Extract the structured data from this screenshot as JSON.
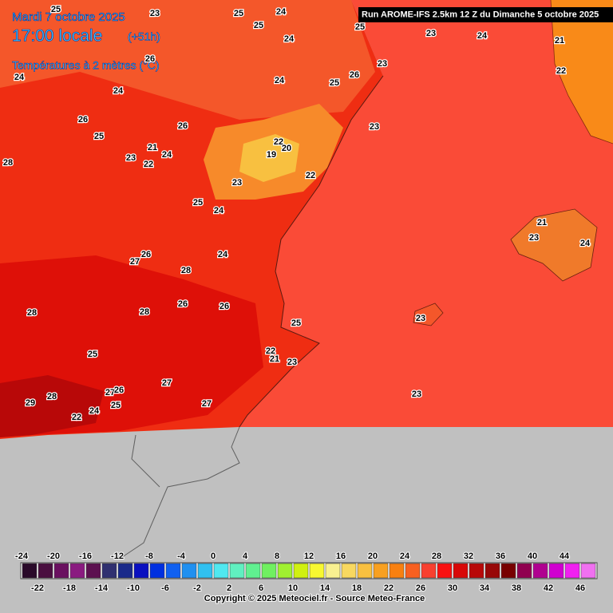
{
  "header": {
    "date": "Mardi 7 octobre 2025",
    "time": "17:00 locale",
    "offset": "(+51h)",
    "variable": "Températures à 2 mètres (°C)"
  },
  "run_info": "Run AROME-IFS 2.5km 12 Z du Dimanche 5 octobre 2025",
  "copyright": "Copyright © 2025 Meteociel.fr - Source Meteo-France",
  "temperature_labels": [
    25,
    23,
    25,
    24,
    25,
    24,
    25,
    23,
    24,
    21,
    22,
    23,
    26,
    24,
    24,
    24,
    25,
    26,
    23,
    26,
    26,
    25,
    21,
    24,
    23,
    22,
    28,
    22,
    19,
    20,
    22,
    23,
    25,
    24,
    21,
    23,
    24,
    24,
    26,
    27,
    28,
    28,
    28,
    26,
    26,
    25,
    23,
    22,
    21,
    23,
    25,
    27,
    28,
    29,
    27,
    26,
    25,
    23,
    27,
    24,
    22
  ],
  "colorbar": {
    "top_labels": [
      -24,
      -20,
      -16,
      -12,
      -8,
      -4,
      0,
      4,
      8,
      12,
      16,
      20,
      24,
      28,
      32,
      36,
      40,
      44
    ],
    "bottom_labels": [
      -22,
      -18,
      -14,
      -10,
      -6,
      -2,
      2,
      6,
      10,
      14,
      18,
      22,
      26,
      30,
      34,
      38,
      42,
      46
    ],
    "colors": [
      "#2a0a2a",
      "#4a0f40",
      "#6a1060",
      "#8a1a80",
      "#5c1050",
      "#303070",
      "#1a2a8a",
      "#0a10c0",
      "#0030e0",
      "#1060f0",
      "#2090f0",
      "#30c0f0",
      "#50e8f0",
      "#60f0c0",
      "#60f090",
      "#70f060",
      "#a0f030",
      "#d0f010",
      "#f8f830",
      "#f8f090",
      "#f8d860",
      "#f8c040",
      "#f8a020",
      "#f88010",
      "#f86020",
      "#f84030",
      "#f81010",
      "#d80808",
      "#b80808",
      "#980808",
      "#780000",
      "#900050",
      "#b00090",
      "#d000d0",
      "#f020f0",
      "#f070f0"
    ]
  }
}
